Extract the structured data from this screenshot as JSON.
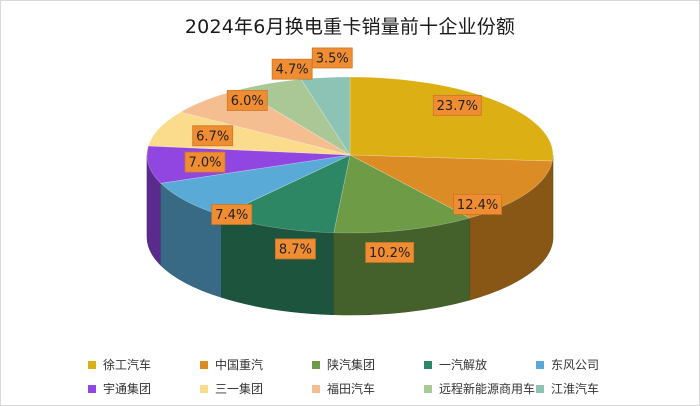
{
  "chart_data": {
    "type": "pie",
    "title": "2024年6月换电重卡销量前十企业份额",
    "series": [
      {
        "name": "徐工汽车",
        "value": 23.7,
        "label": "23.7%",
        "color": "#dcaf14"
      },
      {
        "name": "中国重汽",
        "value": 12.4,
        "label": "12.4%",
        "color": "#dc8c24"
      },
      {
        "name": "陕汽集团",
        "value": 10.2,
        "label": "10.2%",
        "color": "#6e9b46"
      },
      {
        "name": "一汽解放",
        "value": 8.7,
        "label": "8.7%",
        "color": "#2d8764"
      },
      {
        "name": "东风公司",
        "value": 7.4,
        "label": "7.4%",
        "color": "#5aaad7"
      },
      {
        "name": "宇通集团",
        "value": 7.0,
        "label": "7.0%",
        "color": "#9146e1"
      },
      {
        "name": "三一集团",
        "value": 6.7,
        "label": "6.7%",
        "color": "#fadc8c"
      },
      {
        "name": "福田汽车",
        "value": 6.0,
        "label": "6.0%",
        "color": "#f5be91"
      },
      {
        "name": "远程新能源商用车",
        "value": 4.7,
        "label": "4.7%",
        "color": "#aac896"
      },
      {
        "name": "江淮汽车",
        "value": 3.5,
        "label": "3.5%",
        "color": "#8cc3b4"
      }
    ],
    "label_style": {
      "background": "#f08c32",
      "border": "#c87828",
      "text_color": "#222222"
    },
    "legend_position": "bottom"
  }
}
